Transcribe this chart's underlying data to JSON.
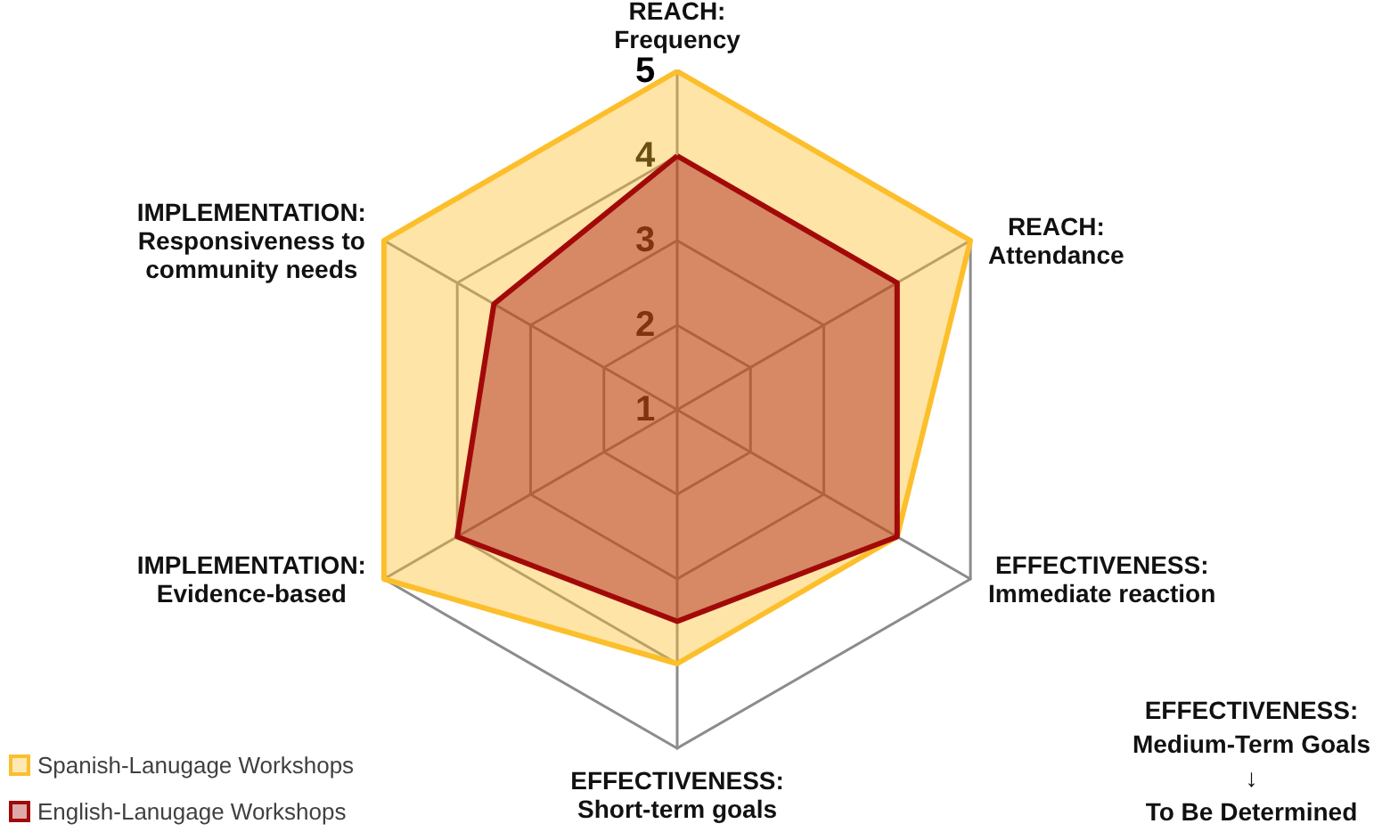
{
  "chart_data": {
    "type": "radar",
    "categories": [
      "REACH:\nFrequency",
      "REACH:\nAttendance",
      "EFFECTIVENESS:\nImmediate reaction",
      "EFFECTIVENESS:\nShort-term goals",
      "IMPLEMENTATION:\nEvidence-based",
      "IMPLEMENTATION:\nResponsiveness to\ncommunity needs"
    ],
    "series": [
      {
        "name": "Spanish-Lanugage Workshops",
        "color": "#fcbf2c",
        "values": [
          5,
          5,
          4,
          4,
          5,
          5
        ]
      },
      {
        "name": "English-Lanugage Workshops",
        "color": "#a20a0a",
        "values": [
          4,
          4,
          4,
          3.5,
          4,
          3.5
        ]
      }
    ],
    "ylim": [
      1,
      5
    ],
    "yticks": [
      1,
      2,
      3,
      4,
      5
    ],
    "grid": true,
    "legend": "bottom left",
    "marker": "none",
    "annotations": [
      "EFFECTIVENESS:\nMedium-Term Goals\n↓\nTo Be Determined"
    ]
  }
}
